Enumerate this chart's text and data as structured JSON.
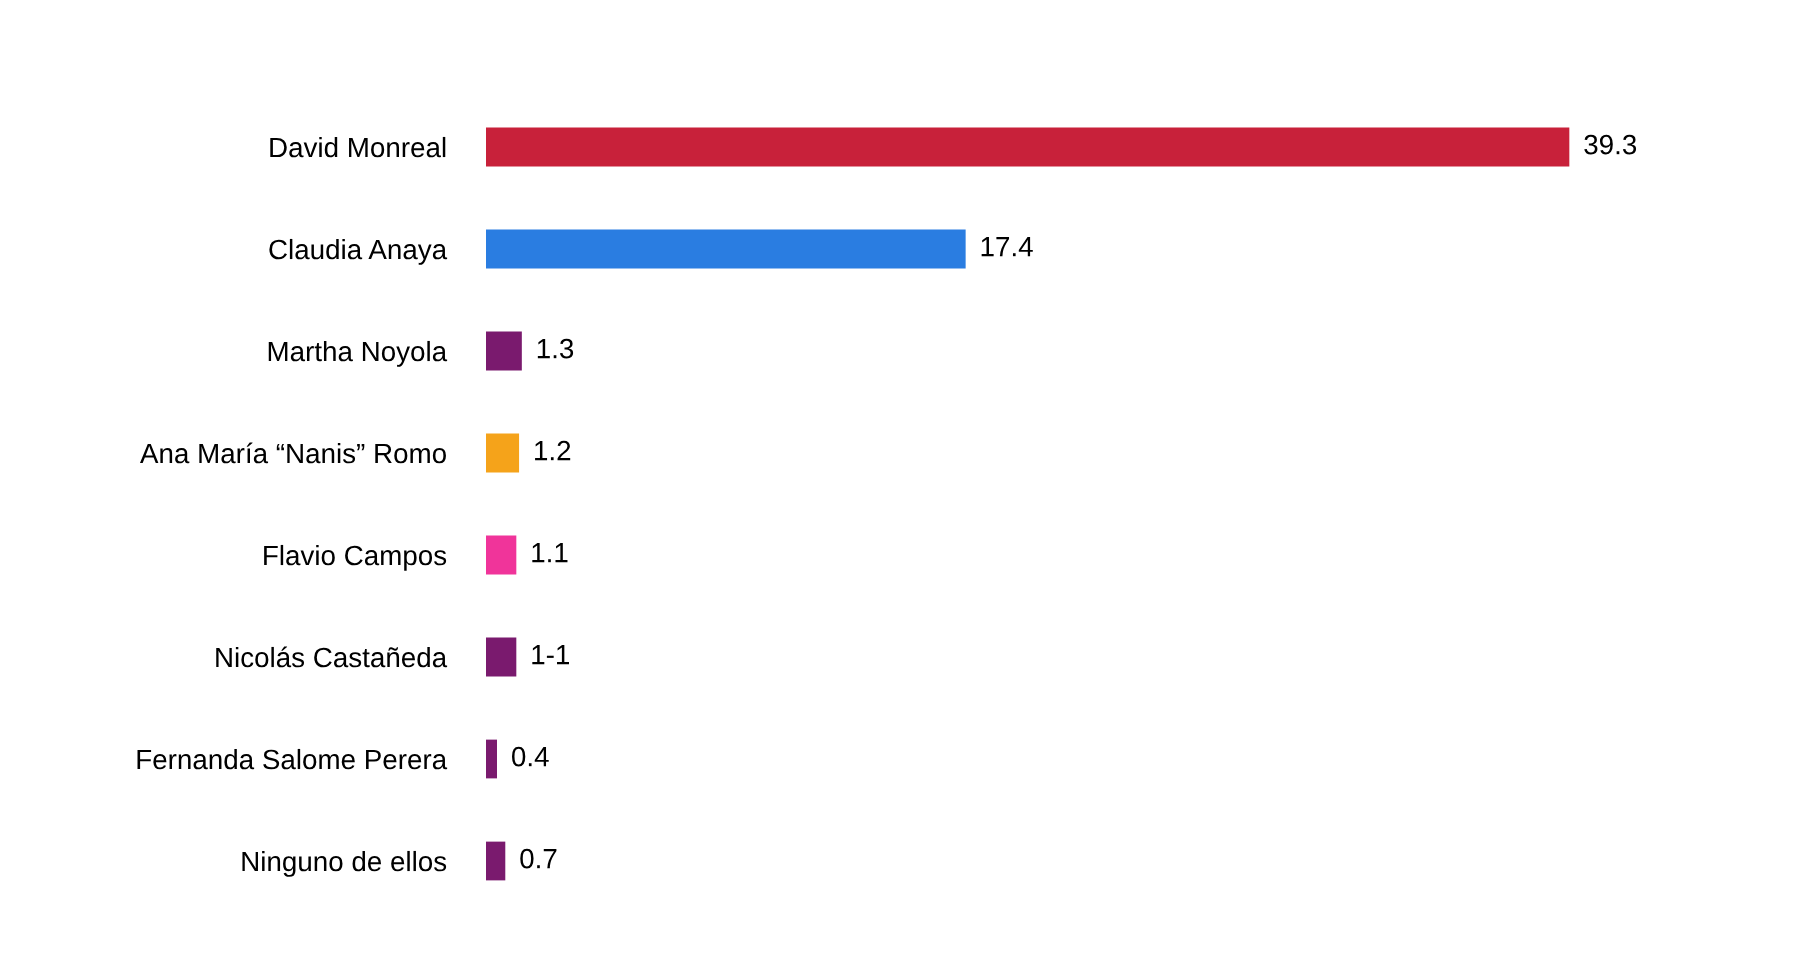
{
  "chart_data": {
    "type": "bar",
    "orientation": "horizontal",
    "categories": [
      "David Monreal",
      "Claudia Anaya",
      "Martha Noyola",
      "Ana María “Nanis” Romo",
      "Flavio Campos",
      "Nicolás Castañeda",
      "Fernanda Salome Perera",
      "Ninguno de ellos"
    ],
    "values": [
      39.3,
      17.4,
      1.3,
      1.2,
      1.1,
      1.1,
      0.4,
      0.7
    ],
    "value_labels": [
      "39.3",
      "17.4",
      "1.3",
      "1.2",
      "1.1",
      "1-1",
      "0.4",
      "0.7"
    ],
    "colors": [
      "#c8213a",
      "#2a7de1",
      "#7a1a6e",
      "#f5a31a",
      "#f0349a",
      "#7a1a6e",
      "#7a1a6e",
      "#7a1a6e"
    ],
    "grid": false
  }
}
